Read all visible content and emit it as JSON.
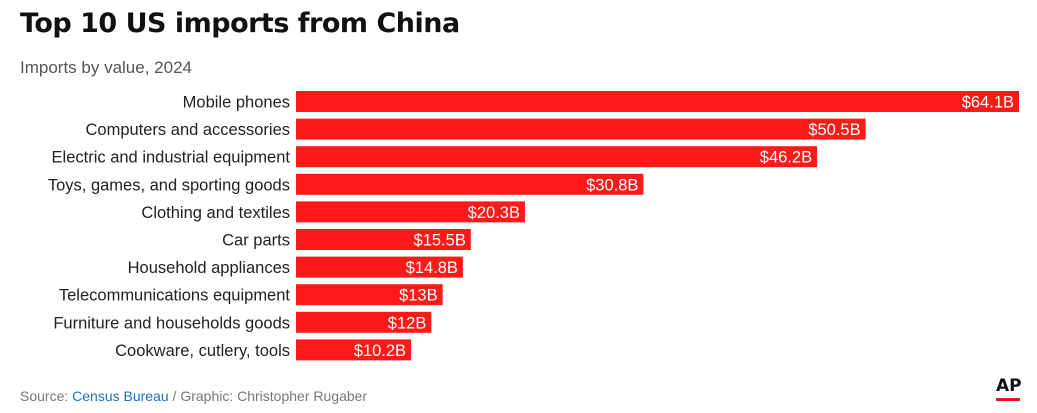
{
  "chart_data": {
    "type": "bar",
    "orientation": "horizontal",
    "title": "Top 10 US imports from China",
    "subtitle": "Imports by value, 2024",
    "categories": [
      "Mobile phones",
      "Computers and accessories",
      "Electric and industrial equipment",
      "Toys, games, and sporting goods",
      "Clothing and textiles",
      "Car parts",
      "Household appliances",
      "Telecommunications equipment",
      "Furniture and households goods",
      "Cookware, cutlery, tools"
    ],
    "values": [
      64.1,
      50.5,
      46.2,
      30.8,
      20.3,
      15.5,
      14.8,
      13,
      12,
      10.2
    ],
    "value_labels": [
      "$64.1B",
      "$50.5B",
      "$46.2B",
      "$30.8B",
      "$20.3B",
      "$15.5B",
      "$14.8B",
      "$13B",
      "$12B",
      "$10.2B"
    ],
    "unit": "billion USD",
    "xlim": [
      0,
      64.1
    ],
    "grid": false,
    "legend": "none",
    "bar_color": "#ff1a1a"
  },
  "footer": {
    "source_prefix": "Source: ",
    "source_name": "Census Bureau",
    "credit": " / Graphic: Christopher Rugaber"
  },
  "logo": {
    "text": "AP"
  }
}
